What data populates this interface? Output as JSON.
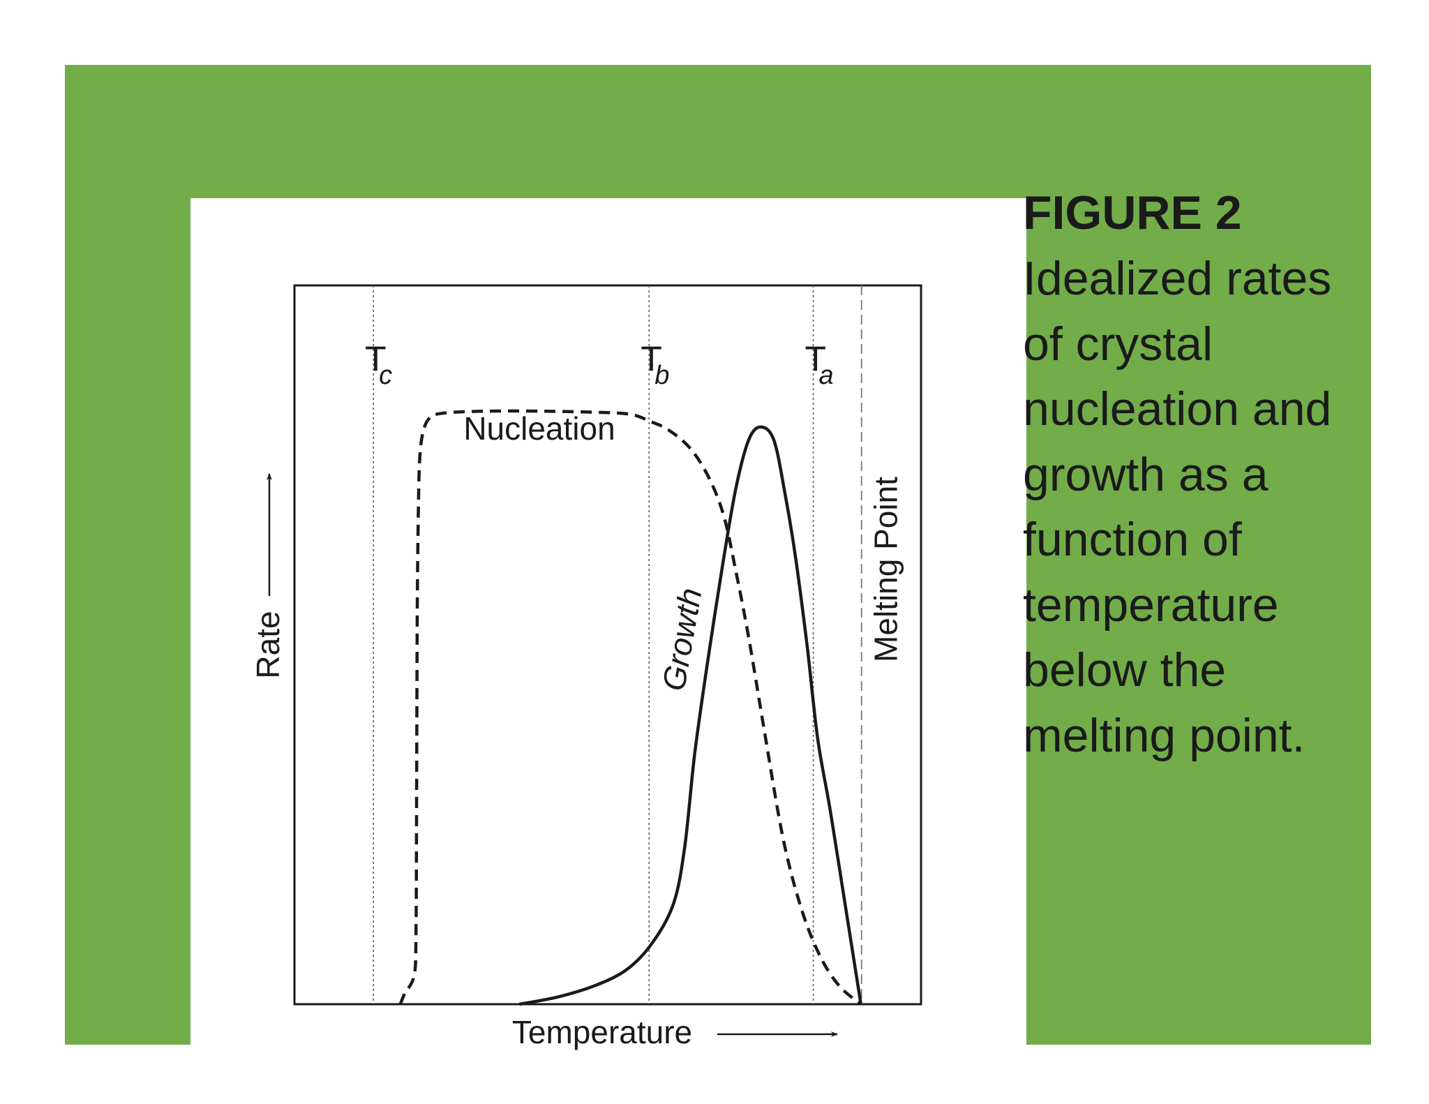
{
  "colors": {
    "frame": "#72ad4a",
    "panel": "#ffffff",
    "ink": "#1a1a1a",
    "guide": "#555555"
  },
  "caption": {
    "title": "FIGURE 2",
    "body": "Idealized rates of crystal nucleation and growth as a function of temperature below the melting point."
  },
  "chart_data": {
    "type": "line",
    "xlabel": "Temperature",
    "ylabel": "Rate",
    "xlim": [
      0,
      100
    ],
    "ylim": [
      0,
      100
    ],
    "grid": false,
    "axis_ticks": false,
    "vlines": [
      {
        "label": "T",
        "sub": "c",
        "x": 12.6,
        "style": "dotted"
      },
      {
        "label": "T",
        "sub": "b",
        "x": 56.6,
        "style": "dotted"
      },
      {
        "label": "T",
        "sub": "a",
        "x": 82.8,
        "style": "dotted"
      },
      {
        "label": "Melting Point",
        "x": 90.5,
        "style": "dashed"
      }
    ],
    "series": [
      {
        "name": "Nucleation",
        "style": "dashed",
        "points": [
          [
            16.9,
            0
          ],
          [
            17.6,
            1.5
          ],
          [
            19.1,
            4
          ],
          [
            19.4,
            10
          ],
          [
            19.5,
            30
          ],
          [
            19.6,
            55
          ],
          [
            19.8,
            70
          ],
          [
            20.0,
            76
          ],
          [
            20.5,
            79.5
          ],
          [
            21.5,
            81.5
          ],
          [
            23.5,
            82.2
          ],
          [
            30,
            82.5
          ],
          [
            40,
            82.5
          ],
          [
            50,
            82.3
          ],
          [
            54,
            82.0
          ],
          [
            57,
            81.0
          ],
          [
            59.5,
            80.0
          ],
          [
            63,
            77.5
          ],
          [
            66,
            73.5
          ],
          [
            68.5,
            68
          ],
          [
            70.5,
            60
          ],
          [
            72.5,
            51
          ],
          [
            75,
            38
          ],
          [
            78,
            23
          ],
          [
            81,
            13
          ],
          [
            84,
            6.5
          ],
          [
            87,
            2.5
          ],
          [
            90.4,
            0
          ]
        ]
      },
      {
        "name": "Growth",
        "style": "solid",
        "points": [
          [
            35.9,
            0
          ],
          [
            42,
            1
          ],
          [
            48,
            2.6
          ],
          [
            53,
            4.8
          ],
          [
            57,
            8.4
          ],
          [
            60.5,
            14
          ],
          [
            62.3,
            22
          ],
          [
            63.9,
            35
          ],
          [
            66,
            48
          ],
          [
            68.5,
            62
          ],
          [
            70.5,
            72
          ],
          [
            72.5,
            78.5
          ],
          [
            74.4,
            80.3
          ],
          [
            76.5,
            78.5
          ],
          [
            78.3,
            71
          ],
          [
            80,
            62
          ],
          [
            81.8,
            50
          ],
          [
            83.5,
            37
          ],
          [
            85.5,
            27
          ],
          [
            87.5,
            16
          ],
          [
            89.5,
            5
          ],
          [
            90.4,
            0
          ]
        ]
      }
    ]
  }
}
